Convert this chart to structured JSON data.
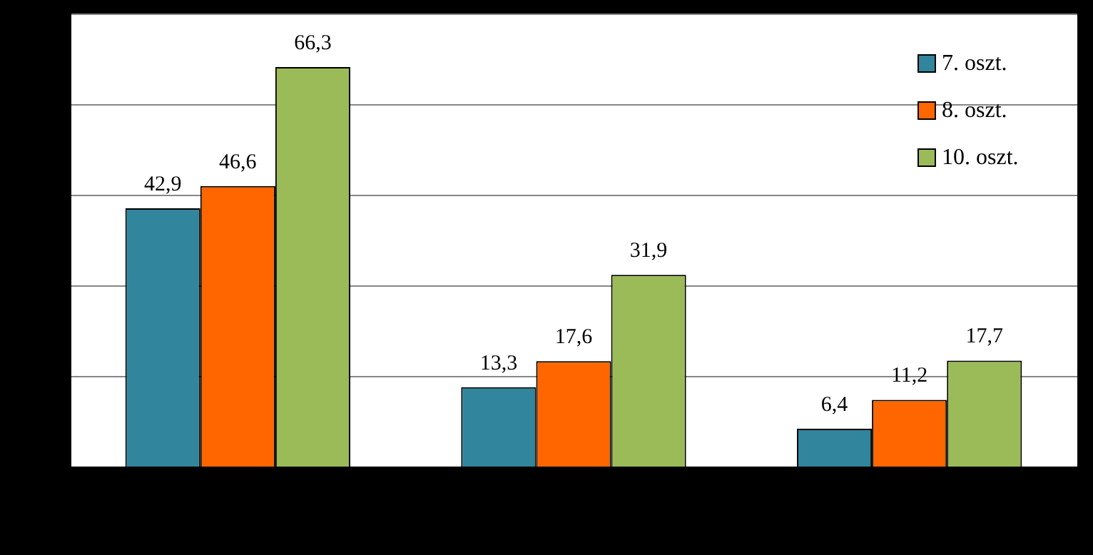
{
  "chart_data": {
    "type": "bar",
    "categories": [
      null,
      null,
      null
    ],
    "series": [
      {
        "name": "7. oszt.",
        "color": "#31859c",
        "values": [
          42.9,
          13.3,
          6.4
        ],
        "value_labels": [
          "42,9",
          "13,3",
          "6,4"
        ]
      },
      {
        "name": "8. oszt.",
        "color": "#ff6600",
        "values": [
          46.6,
          17.6,
          11.2
        ],
        "value_labels": [
          "46,6",
          "17,6",
          "11,2"
        ]
      },
      {
        "name": "10. oszt.",
        "color": "#9bbb59",
        "values": [
          66.3,
          31.9,
          17.7
        ],
        "value_labels": [
          "66,3",
          "31,9",
          "17,7"
        ]
      }
    ],
    "ylim": [
      0,
      75
    ],
    "yticks": [
      {
        "value": 0,
        "label": null
      },
      {
        "value": 15,
        "label": null
      },
      {
        "value": 30,
        "label": null
      },
      {
        "value": 45,
        "label": null
      },
      {
        "value": 60,
        "label": null
      },
      {
        "value": 75,
        "label": null
      }
    ],
    "grid": "y",
    "legend": "top right"
  }
}
